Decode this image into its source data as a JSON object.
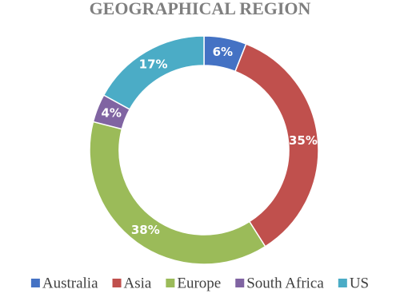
{
  "chart_data": {
    "type": "donut",
    "title": "GEOGRAPHICAL REGION",
    "categories": [
      "Australia",
      "Asia",
      "Europe",
      "South Africa",
      "US"
    ],
    "values": [
      6,
      35,
      38,
      4,
      17
    ],
    "value_labels": [
      "6%",
      "35%",
      "38%",
      "4%",
      "17%"
    ],
    "colors": [
      "#4472c4",
      "#c0504d",
      "#9bbb59",
      "#8064a2",
      "#4bacc6"
    ],
    "legend": "bottom"
  }
}
